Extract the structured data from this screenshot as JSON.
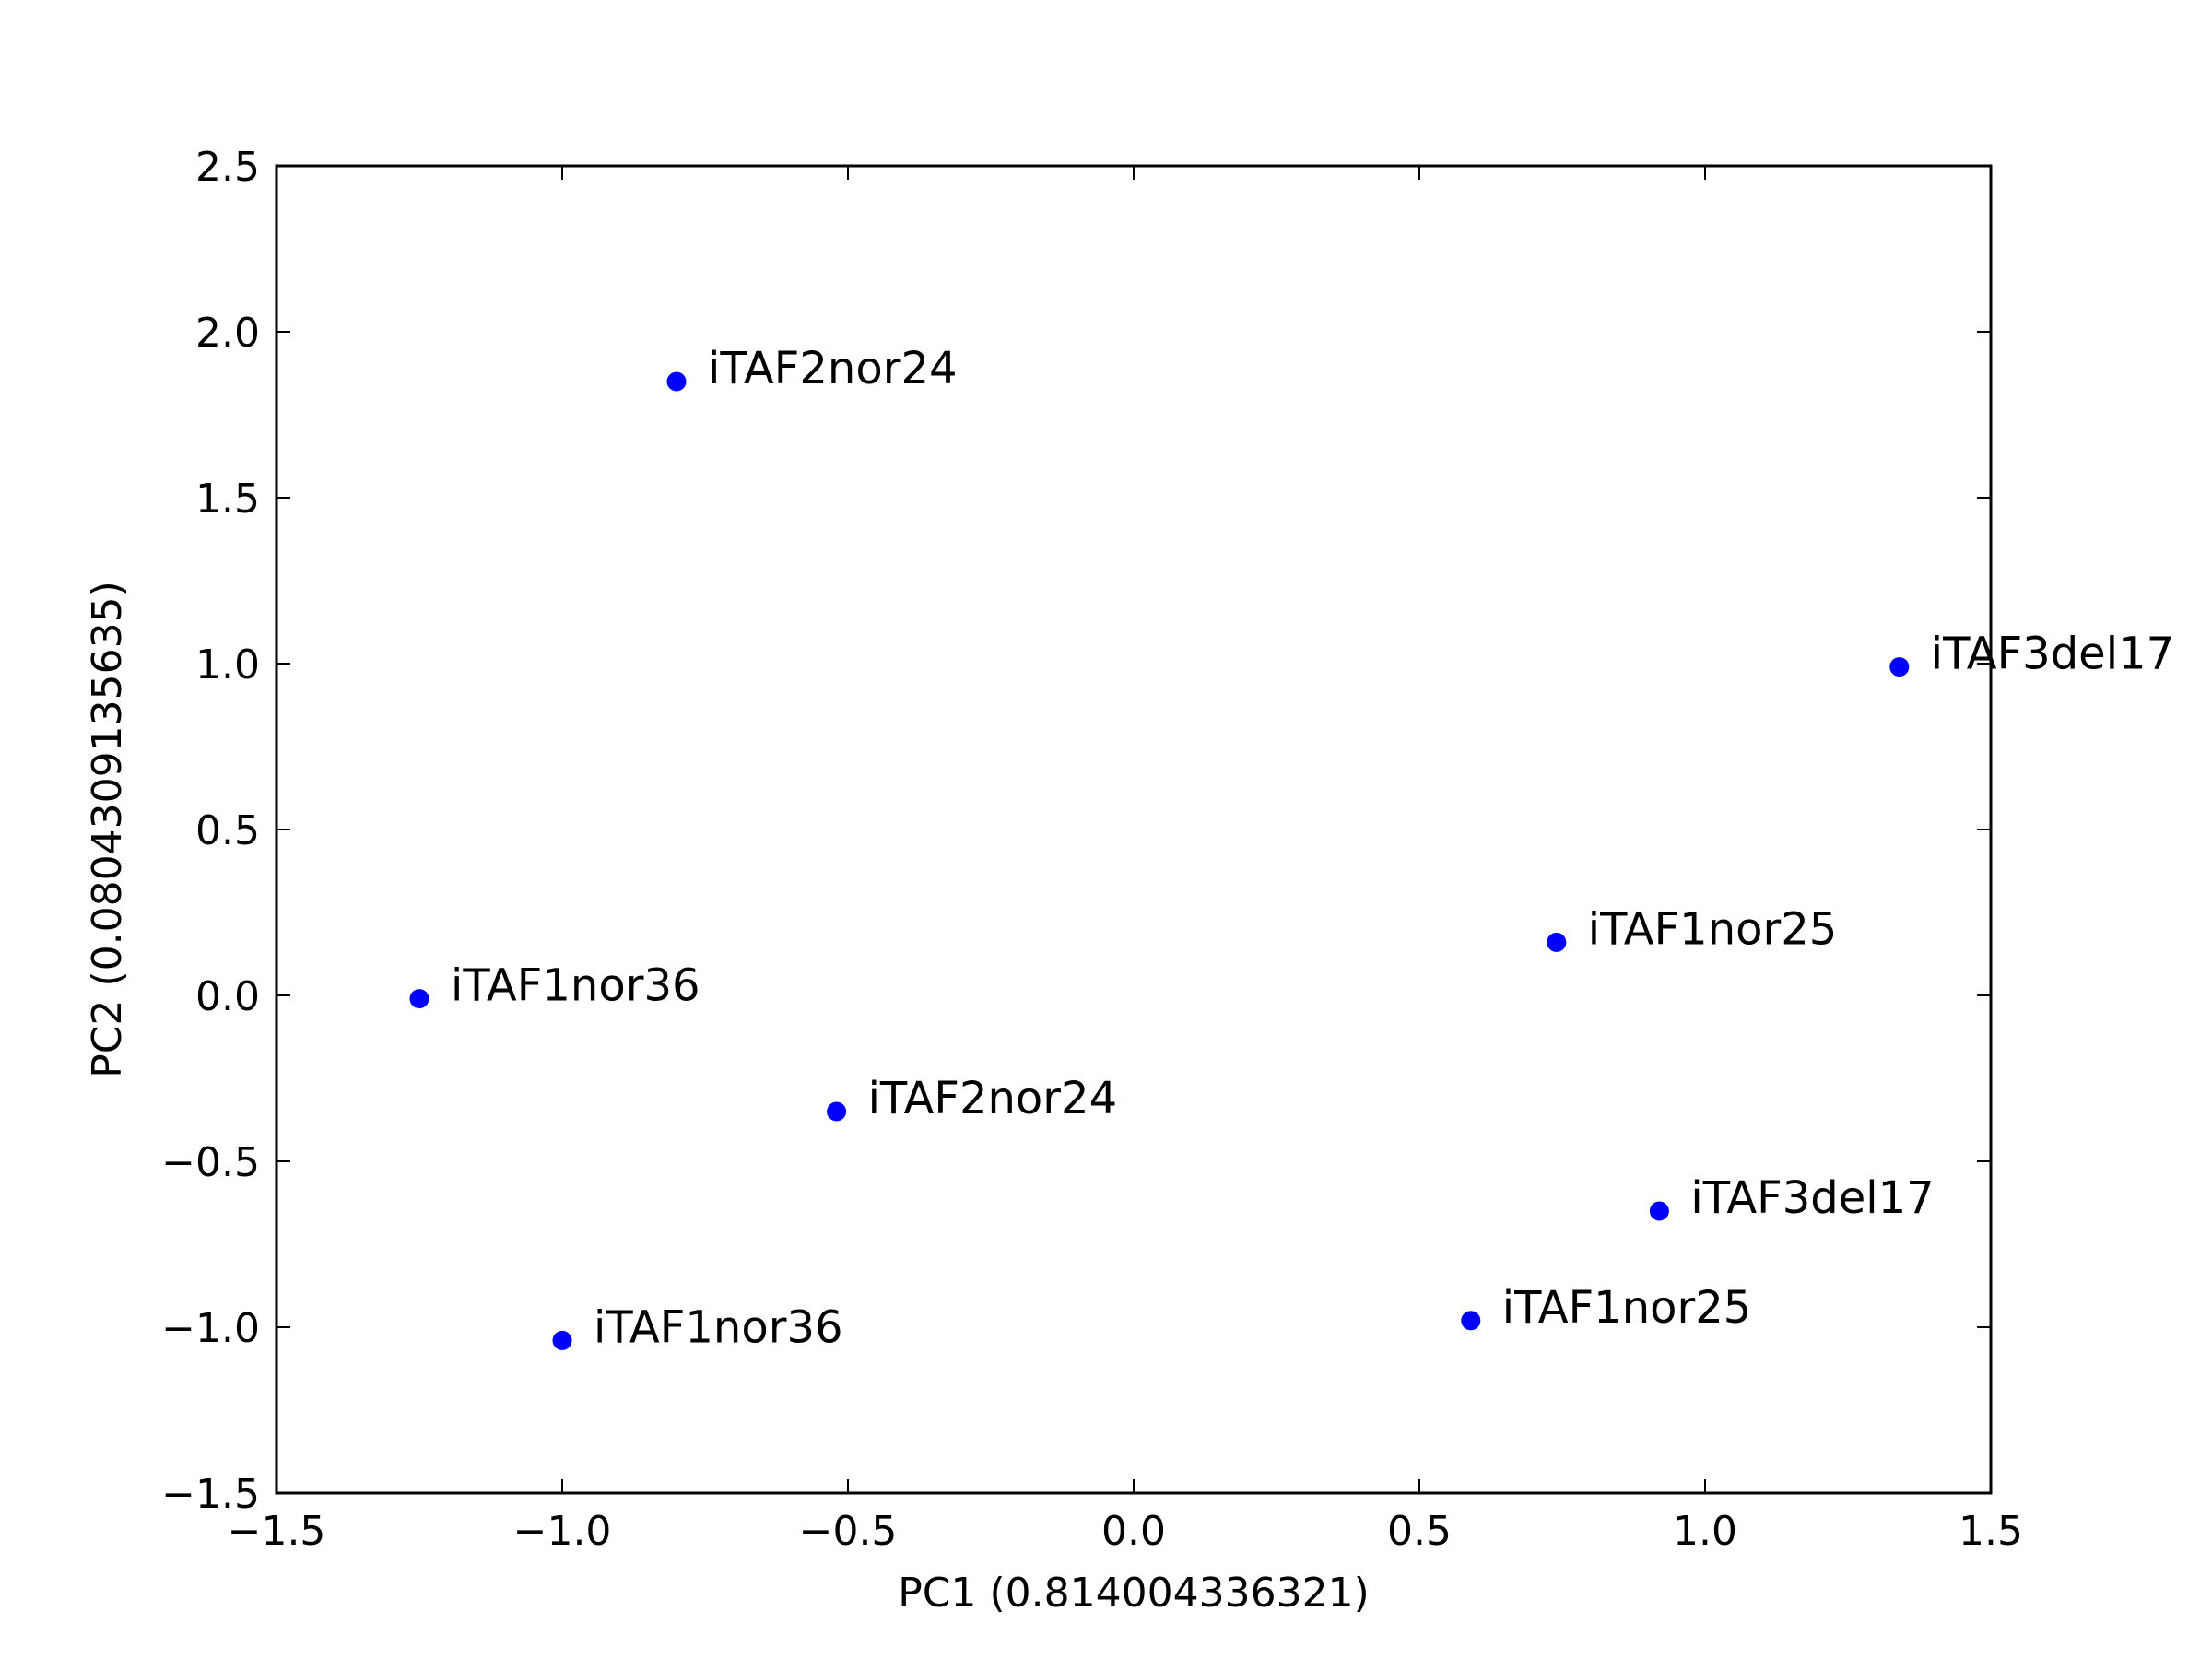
{
  "chart_data": {
    "type": "scatter",
    "title": "",
    "xlabel": "PC1 (0.814004336321)",
    "ylabel": "PC2 (0.0804309135635)",
    "xlim": [
      -1.5,
      1.5
    ],
    "ylim": [
      -1.5,
      2.5
    ],
    "xticks": [
      -1.5,
      -1.0,
      -0.5,
      0.0,
      0.5,
      1.0,
      1.5
    ],
    "yticks": [
      -1.5,
      -1.0,
      -0.5,
      0.0,
      0.5,
      1.0,
      1.5,
      2.0,
      2.5
    ],
    "xtick_labels": [
      "−1.5",
      "−1.0",
      "−0.5",
      "0.0",
      "0.5",
      "1.0",
      "1.5"
    ],
    "ytick_labels": [
      "−1.5",
      "−1.0",
      "−0.5",
      "0.0",
      "0.5",
      "1.0",
      "1.5",
      "2.0",
      "2.5"
    ],
    "grid": false,
    "marker_color": "#0000ff",
    "points": [
      {
        "x": -0.8,
        "y": 1.85,
        "label": "iTAF2nor24"
      },
      {
        "x": 1.34,
        "y": 0.99,
        "label": "iTAF3del17"
      },
      {
        "x": 0.74,
        "y": 0.16,
        "label": "iTAF1nor25"
      },
      {
        "x": -1.25,
        "y": -0.01,
        "label": "iTAF1nor36"
      },
      {
        "x": -0.52,
        "y": -0.35,
        "label": "iTAF2nor24"
      },
      {
        "x": 0.92,
        "y": -0.65,
        "label": "iTAF3del17"
      },
      {
        "x": 0.59,
        "y": -0.98,
        "label": "iTAF1nor25"
      },
      {
        "x": -1.0,
        "y": -1.04,
        "label": "iTAF1nor36"
      }
    ]
  }
}
